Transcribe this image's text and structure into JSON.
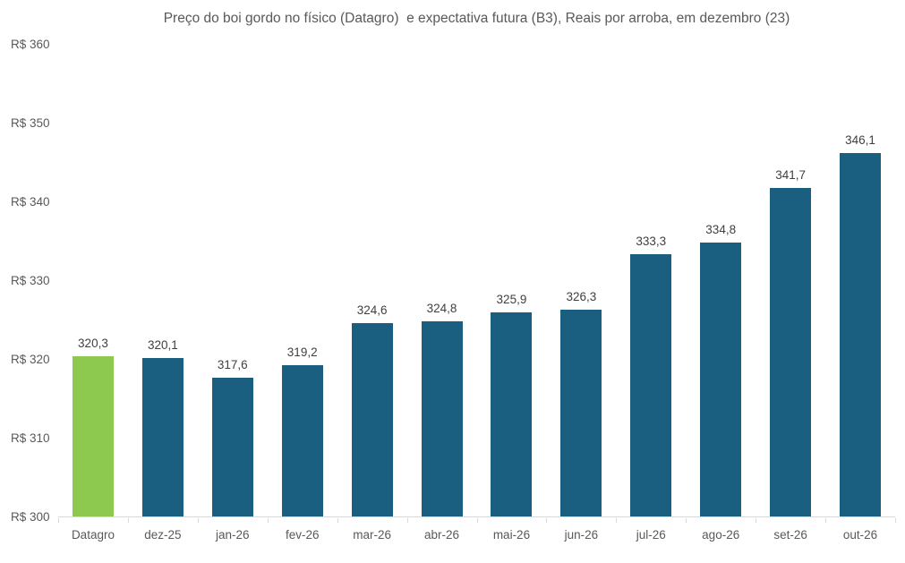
{
  "chart_data": {
    "type": "bar",
    "title": "Preço do boi gordo no físico (Datagro)  e expectativa futura (B3), Reais por arroba, em dezembro (23)",
    "categories": [
      "Datagro",
      "dez-25",
      "jan-26",
      "fev-26",
      "mar-26",
      "abr-26",
      "mai-26",
      "jun-26",
      "jul-26",
      "ago-26",
      "set-26",
      "out-26"
    ],
    "values": [
      320.3,
      320.1,
      317.6,
      319.2,
      324.6,
      324.8,
      325.9,
      326.3,
      333.3,
      334.8,
      341.7,
      346.1
    ],
    "value_labels": [
      "320,3",
      "320,1",
      "317,6",
      "319,2",
      "324,6",
      "324,8",
      "325,9",
      "326,3",
      "333,3",
      "334,8",
      "341,7",
      "346,1"
    ],
    "xlabel": "",
    "ylabel": "",
    "ylim": [
      300,
      360
    ],
    "ytick_step": 10,
    "ytick_labels": [
      "R$ 300",
      "R$ 310",
      "R$ 320",
      "R$ 330",
      "R$ 340",
      "R$ 350",
      "R$ 360"
    ],
    "grid": false,
    "legend": "none",
    "highlight_index": 0,
    "colors": {
      "highlight_bar": "#8dc94e",
      "default_bar": "#1a5f80",
      "axis_line": "#d9d9d9",
      "title_text": "#595959",
      "axis_text": "#595959",
      "value_label_text": "#404040"
    }
  }
}
